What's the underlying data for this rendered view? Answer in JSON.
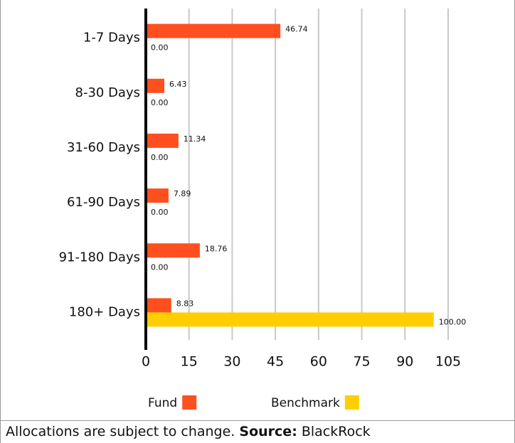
{
  "chart_data": {
    "type": "barh",
    "categories": [
      "1-7 Days",
      "8-30 Days",
      "31-60 Days",
      "61-90 Days",
      "91-180 Days",
      "180+ Days"
    ],
    "series": [
      {
        "name": "Fund",
        "color": "#ff4f1f",
        "values": [
          46.74,
          6.43,
          11.34,
          7.89,
          18.76,
          8.83
        ],
        "value_labels": [
          "46.74",
          "6.43",
          "11.34",
          "7.89",
          "18.76",
          "8.83"
        ]
      },
      {
        "name": "Benchmark",
        "color": "#ffce00",
        "values": [
          0,
          0,
          0,
          0,
          0,
          100
        ],
        "value_labels": [
          "0.00",
          "0.00",
          "0.00",
          "0.00",
          "0.00",
          "100.00"
        ]
      }
    ],
    "xlim": [
      0,
      105
    ],
    "xticks": [
      0,
      15,
      30,
      45,
      60,
      75,
      90,
      105
    ],
    "grid": true,
    "legend": "bottom",
    "note": "Allocations are subject to change.",
    "source_label": "Source:",
    "source": "BlackRock"
  }
}
